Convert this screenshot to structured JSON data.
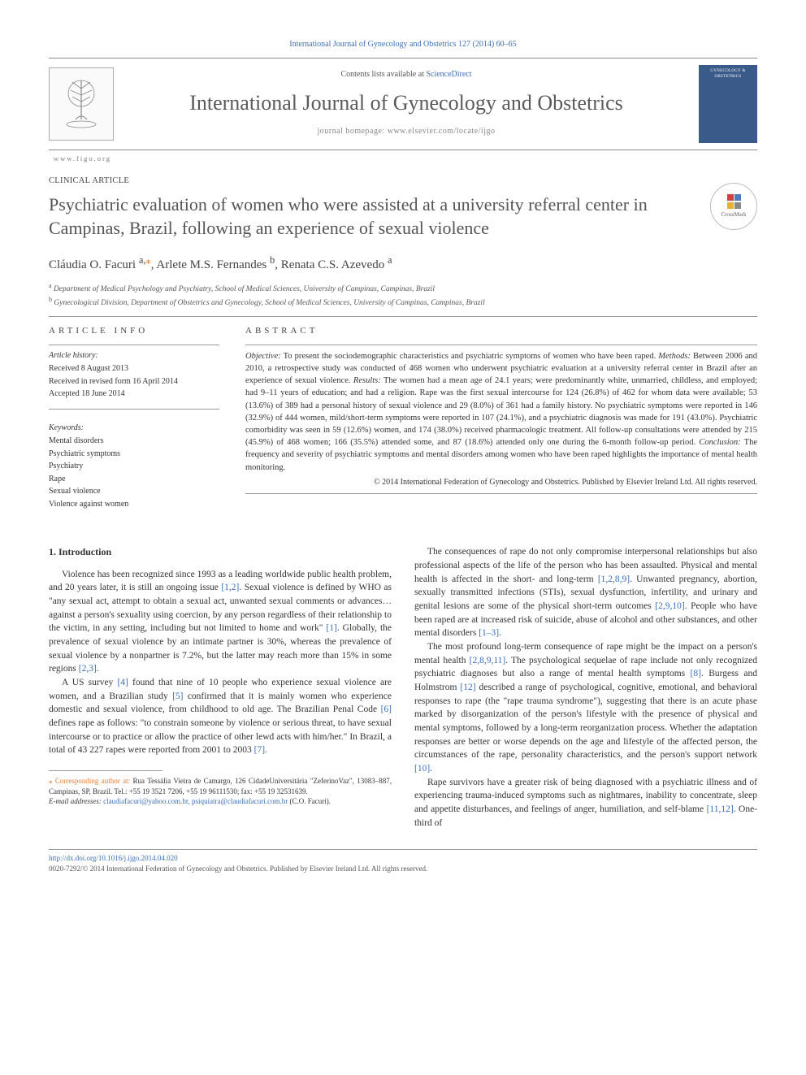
{
  "header": {
    "citation": "International Journal of Gynecology and Obstetrics 127 (2014) 60–65",
    "contents_prefix": "Contents lists available at ",
    "contents_link": "ScienceDirect",
    "journal_title": "International Journal of Gynecology and Obstetrics",
    "homepage_prefix": "journal homepage: ",
    "homepage_url": "www.elsevier.com/locate/ijgo",
    "figo_url": "www.figo.org",
    "cover_text": "GYNECOLOGY & OBSTETRICS"
  },
  "crossmark": "CrossMark",
  "article": {
    "section_label": "CLINICAL ARTICLE",
    "title": "Psychiatric evaluation of women who were assisted at a university referral center in Campinas, Brazil, following an experience of sexual violence",
    "authors_html": "Cláudia O. Facuri <sup>a,</sup><sup class='star'>⁎</sup>, Arlete M.S. Fernandes <sup>b</sup>, Renata C.S. Azevedo <sup>a</sup>",
    "affiliations": [
      {
        "key": "a",
        "text": "Department of Medical Psychology and Psychiatry, School of Medical Sciences, University of Campinas, Campinas, Brazil"
      },
      {
        "key": "b",
        "text": "Gynecological Division, Department of Obstetrics and Gynecology, School of Medical Sciences, University of Campinas, Campinas, Brazil"
      }
    ]
  },
  "info": {
    "heading": "ARTICLE INFO",
    "history_label": "Article history:",
    "received": "Received 8 August 2013",
    "revised": "Received in revised form 16 April 2014",
    "accepted": "Accepted 18 June 2014",
    "keywords_label": "Keywords:",
    "keywords": [
      "Mental disorders",
      "Psychiatric symptoms",
      "Psychiatry",
      "Rape",
      "Sexual violence",
      "Violence against women"
    ]
  },
  "abstract": {
    "heading": "ABSTRACT",
    "objective_label": "Objective:",
    "objective": "To present the sociodemographic characteristics and psychiatric symptoms of women who have been raped.",
    "methods_label": "Methods:",
    "methods": "Between 2006 and 2010, a retrospective study was conducted of 468 women who underwent psychiatric evaluation at a university referral center in Brazil after an experience of sexual violence.",
    "results_label": "Results:",
    "results": "The women had a mean age of 24.1 years; were predominantly white, unmarried, childless, and employed; had 9–11 years of education; and had a religion. Rape was the first sexual intercourse for 124 (26.8%) of 462 for whom data were available; 53 (13.6%) of 389 had a personal history of sexual violence and 29 (8.0%) of 361 had a family history. No psychiatric symptoms were reported in 146 (32.9%) of 444 women, mild/short-term symptoms were reported in 107 (24.1%), and a psychiatric diagnosis was made for 191 (43.0%). Psychiatric comorbidity was seen in 59 (12.6%) women, and 174 (38.0%) received pharmacologic treatment. All follow-up consultations were attended by 215 (45.9%) of 468 women; 166 (35.5%) attended some, and 87 (18.6%) attended only one during the 6-month follow-up period.",
    "conclusion_label": "Conclusion:",
    "conclusion": "The frequency and severity of psychiatric symptoms and mental disorders among women who have been raped highlights the importance of mental health monitoring.",
    "copyright": "© 2014 International Federation of Gynecology and Obstetrics. Published by Elsevier Ireland Ltd. All rights reserved."
  },
  "body": {
    "section1_heading": "1. Introduction",
    "left_paras": [
      "Violence has been recognized since 1993 as a leading worldwide public health problem, and 20 years later, it is still an ongoing issue [1,2]. Sexual violence is defined by WHO as \"any sexual act, attempt to obtain a sexual act, unwanted sexual comments or advances…against a person's sexuality using coercion, by any person regardless of their relationship to the victim, in any setting, including but not limited to home and work\" [1]. Globally, the prevalence of sexual violence by an intimate partner is 30%, whereas the prevalence of sexual violence by a nonpartner is 7.2%, but the latter may reach more than 15% in some regions [2,3].",
      "A US survey [4] found that nine of 10 people who experience sexual violence are women, and a Brazilian study [5] confirmed that it is mainly women who experience domestic and sexual violence, from childhood to old age. The Brazilian Penal Code [6] defines rape as follows: \"to constrain someone by violence or serious threat, to have sexual intercourse or to practice or allow the practice of other lewd acts with him/her.\" In Brazil, a total of 43 227 rapes were reported from 2001 to 2003 [7]."
    ],
    "right_paras": [
      "The consequences of rape do not only compromise interpersonal relationships but also professional aspects of the life of the person who has been assaulted. Physical and mental health is affected in the short- and long-term [1,2,8,9]. Unwanted pregnancy, abortion, sexually transmitted infections (STIs), sexual dysfunction, infertility, and urinary and genital lesions are some of the physical short-term outcomes [2,9,10]. People who have been raped are at increased risk of suicide, abuse of alcohol and other substances, and other mental disorders [1–3].",
      "The most profound long-term consequence of rape might be the impact on a person's mental health [2,8,9,11]. The psychological sequelae of rape include not only recognized psychiatric diagnoses but also a range of mental health symptoms [8]. Burgess and Holmstrom [12] described a range of psychological, cognitive, emotional, and behavioral responses to rape (the \"rape trauma syndrome\"), suggesting that there is an acute phase marked by disorganization of the person's lifestyle with the presence of physical and mental symptoms, followed by a long-term reorganization process. Whether the adaptation responses are better or worse depends on the age and lifestyle of the affected person, the circumstances of the rape, personality characteristics, and the person's support network [10].",
      "Rape survivors have a greater risk of being diagnosed with a psychiatric illness and of experiencing trauma-induced symptoms such as nightmares, inability to concentrate, sleep and appetite disturbances, and feelings of anger, humiliation, and self-blame [11,12]. One-third of"
    ]
  },
  "footnotes": {
    "corr_label": "⁎ Corresponding author at: ",
    "corr_text": "Rua Tessália Vieira de Camargo, 126 CidadeUniversitária \"ZeferinoVaz\", 13083–887, Campinas, SP, Brazil. Tel.: +55 19 3521 7206, +55 19 96111530; fax: +55 19 32531639.",
    "email_label": "E-mail addresses: ",
    "emails": "claudiafacuri@yahoo.com.br, psiquiatra@claudiafacuri.com.br",
    "email_owner": "(C.O. Facuri)."
  },
  "bottom": {
    "doi": "http://dx.doi.org/10.1016/j.ijgo.2014.04.020",
    "issn_line": "0020-7292/© 2014 International Federation of Gynecology and Obstetrics. Published by Elsevier Ireland Ltd. All rights reserved."
  },
  "ref_color": "#3b6fb5"
}
